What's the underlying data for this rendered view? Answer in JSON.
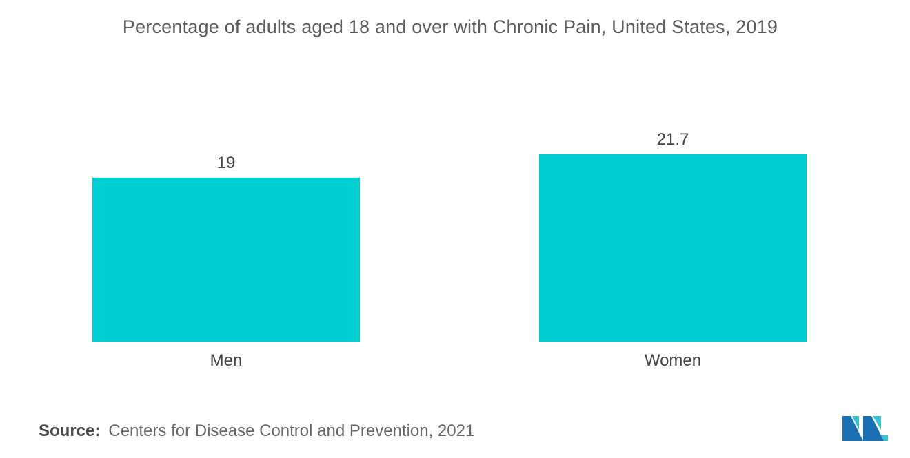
{
  "chart_data": {
    "type": "bar",
    "title": "Percentage of adults aged 18 and over with Chronic Pain, United States, 2019",
    "categories": [
      "Men",
      "Women"
    ],
    "values": [
      19,
      21.7
    ],
    "value_labels": [
      "19",
      "21.7"
    ],
    "xlabel": "",
    "ylabel": "",
    "ylim": [
      0,
      21.7
    ],
    "grid": false,
    "legend": "none",
    "bar_color": "#00CED1"
  },
  "source": {
    "label": "Source:",
    "text": "Centers for Disease Control and Prevention, 2021"
  },
  "logo": {
    "icon": "mordor-intelligence-logo-icon",
    "colors": [
      "#1b6fb5",
      "#3cc0d9"
    ]
  }
}
